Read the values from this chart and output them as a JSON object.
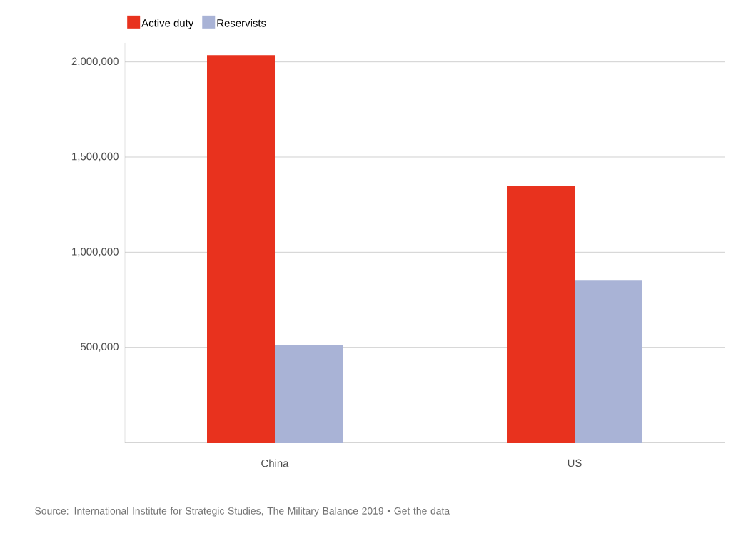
{
  "chart_data": {
    "type": "bar",
    "categories": [
      "China",
      "US"
    ],
    "series": [
      {
        "name": "Active duty",
        "color": "#e8321e",
        "values": [
          2035000,
          1350000
        ]
      },
      {
        "name": "Reservists",
        "color": "#a9b3d6",
        "values": [
          510000,
          850000
        ]
      }
    ],
    "ylim": [
      0,
      2100000
    ],
    "yticks": [
      {
        "value": 500000,
        "label": "500,000"
      },
      {
        "value": 1000000,
        "label": "1,000,000"
      },
      {
        "value": 1500000,
        "label": "1,500,000"
      },
      {
        "value": 2000000,
        "label": "2,000,000"
      }
    ],
    "grid": "y",
    "legend": "top left",
    "annotations": [
      "Source: International Institute for Strategic Studies, The Military Balance 2019 • Get the data"
    ]
  }
}
